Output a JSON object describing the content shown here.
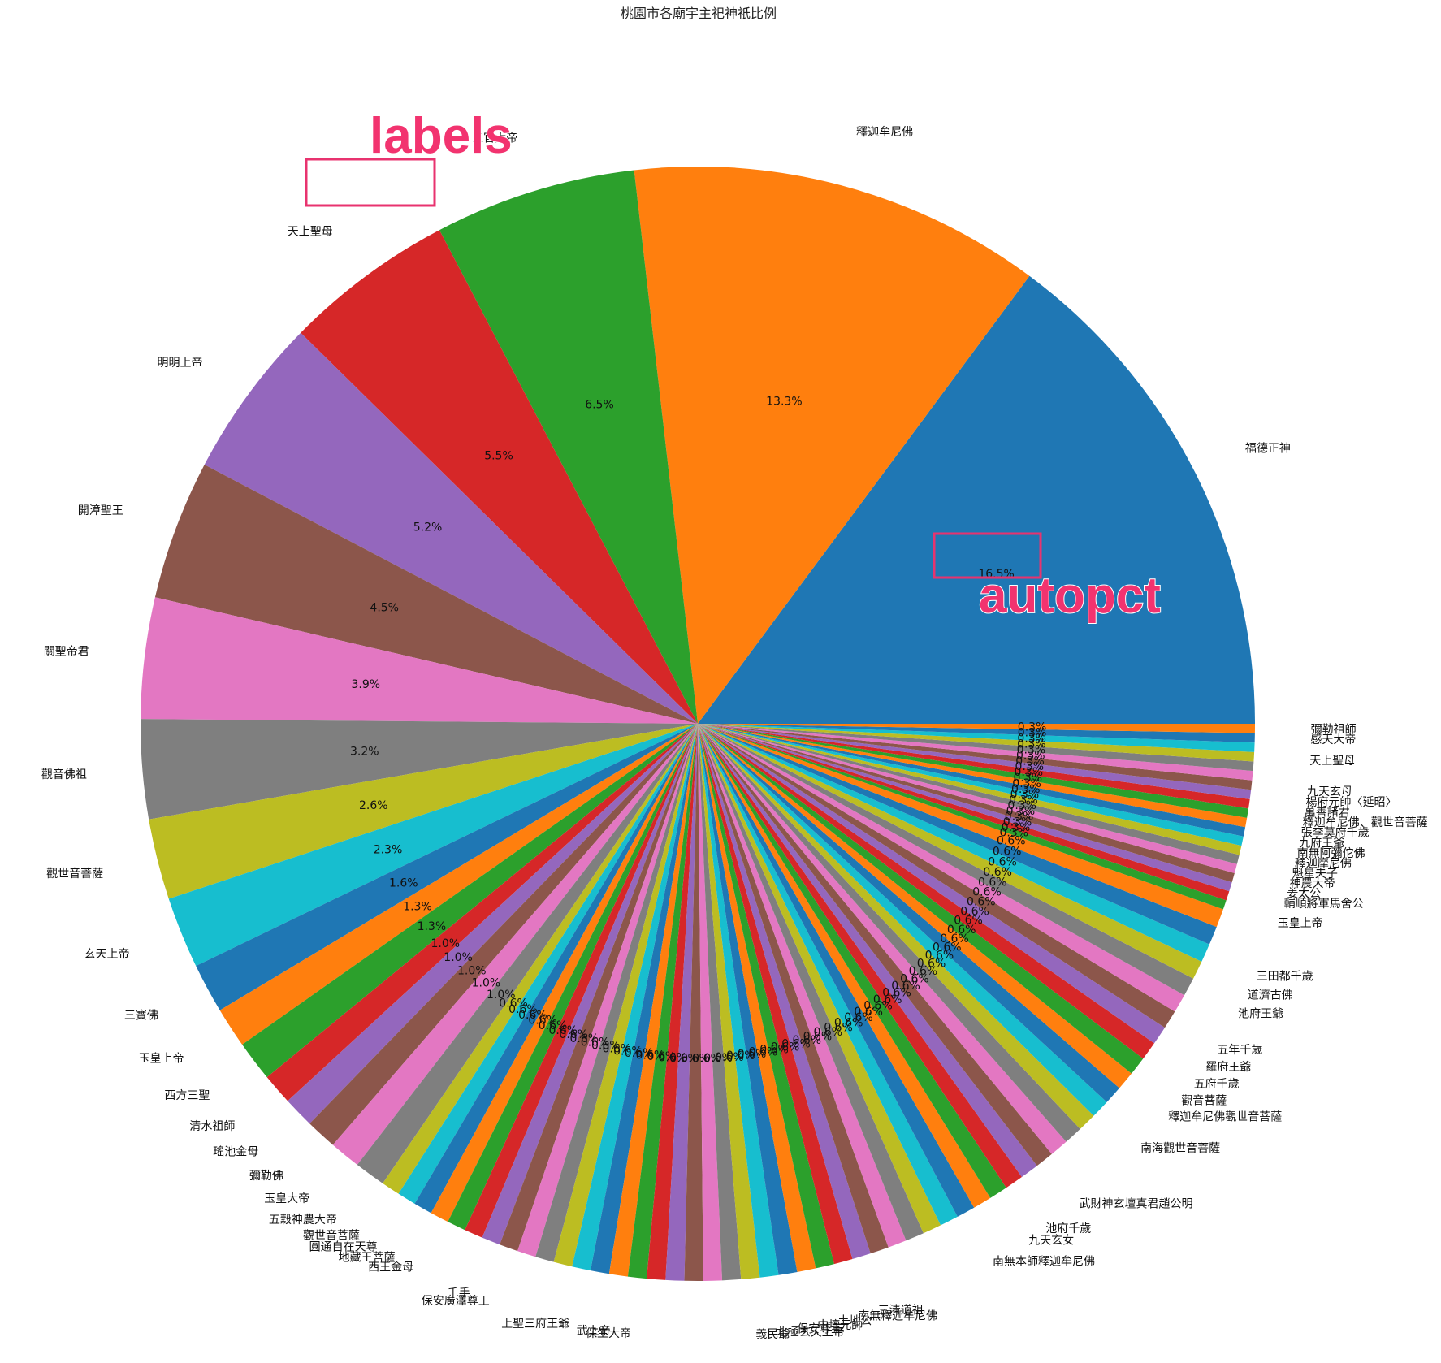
{
  "chart_data": {
    "type": "pie",
    "title": "桃園市各廟宇主祀神祇比例",
    "colors": [
      "#1f77b4",
      "#ff7f0e",
      "#2ca02c",
      "#d62728",
      "#9467bd",
      "#8c564b",
      "#e377c2",
      "#7f7f7f",
      "#bcbd22",
      "#17becf"
    ],
    "slices": [
      {
        "label": "福德正神",
        "value": 16.5,
        "pct": "16.5%"
      },
      {
        "label": "釋迦牟尼佛",
        "value": 13.3,
        "pct": "13.3%"
      },
      {
        "label": "三官大帝",
        "value": 6.5,
        "pct": "6.5%"
      },
      {
        "label": "天上聖母",
        "value": 5.5,
        "pct": "5.5%"
      },
      {
        "label": "明明上帝",
        "value": 5.2,
        "pct": "5.2%"
      },
      {
        "label": "開漳聖王",
        "value": 4.5,
        "pct": "4.5%"
      },
      {
        "label": "關聖帝君",
        "value": 3.9,
        "pct": "3.9%"
      },
      {
        "label": "觀音佛祖",
        "value": 3.2,
        "pct": "3.2%"
      },
      {
        "label": "觀世音菩薩",
        "value": 2.6,
        "pct": "2.6%"
      },
      {
        "label": "玄天上帝",
        "value": 2.3,
        "pct": "2.3%"
      },
      {
        "label": "三寶佛",
        "value": 1.6,
        "pct": "1.6%"
      },
      {
        "label": "玉皇上帝",
        "value": 1.3,
        "pct": "1.3%"
      },
      {
        "label": "西方三聖",
        "value": 1.3,
        "pct": "1.3%"
      },
      {
        "label": "清水祖師",
        "value": 1.0,
        "pct": "1.0%"
      },
      {
        "label": "瑤池金母",
        "value": 1.0,
        "pct": "1.0%"
      },
      {
        "label": "彌勒佛",
        "value": 1.0,
        "pct": "1.0%"
      },
      {
        "label": "玉皇大帝",
        "value": 1.0,
        "pct": "1.0%"
      },
      {
        "label": "五穀神農大帝",
        "value": 1.0,
        "pct": "1.0%"
      },
      {
        "label": "觀世音菩薩",
        "value": 0.6,
        "pct": "0.6%"
      },
      {
        "label": "圓通自在天尊",
        "value": 0.6,
        "pct": "0.6%"
      },
      {
        "label": "地藏王菩薩",
        "value": 0.6,
        "pct": "0.6%"
      },
      {
        "label": "西王金母",
        "value": 0.6,
        "pct": "0.6%"
      },
      {
        "label": "",
        "value": 0.6,
        "pct": "0.6%"
      },
      {
        "label": "",
        "value": 0.6,
        "pct": "0.6%"
      },
      {
        "label": "千手",
        "value": 0.6,
        "pct": "0.6%"
      },
      {
        "label": "保安廣澤尊王",
        "value": 0.6,
        "pct": "0.6%"
      },
      {
        "label": "",
        "value": 0.6,
        "pct": "0.6%"
      },
      {
        "label": "",
        "value": 0.6,
        "pct": "0.6%"
      },
      {
        "label": "",
        "value": 0.6,
        "pct": "0.6%"
      },
      {
        "label": "上聖三府王爺",
        "value": 0.6,
        "pct": "0.6%"
      },
      {
        "label": "",
        "value": 0.6,
        "pct": "0.6%"
      },
      {
        "label": "武上帝",
        "value": 0.6,
        "pct": "0.6%"
      },
      {
        "label": "保生大帝",
        "value": 0.6,
        "pct": "0.6%"
      },
      {
        "label": "",
        "value": 0.6,
        "pct": "0.6%"
      },
      {
        "label": "",
        "value": 0.6,
        "pct": "0.6%"
      },
      {
        "label": "",
        "value": 0.6,
        "pct": "0.6%"
      },
      {
        "label": "",
        "value": 0.6,
        "pct": "0.6%"
      },
      {
        "label": "",
        "value": 0.6,
        "pct": "0.6%"
      },
      {
        "label": "義民爺",
        "value": 0.6,
        "pct": "0.6%"
      },
      {
        "label": "北極玄天上帝",
        "value": 0.6,
        "pct": "0.6%"
      },
      {
        "label": "保安尊王",
        "value": 0.6,
        "pct": "0.6%"
      },
      {
        "label": "中壇元帥",
        "value": 0.6,
        "pct": "0.6%"
      },
      {
        "label": "土地公",
        "value": 0.6,
        "pct": "0.6%"
      },
      {
        "label": "南無釋迦牟尼佛",
        "value": 0.6,
        "pct": "0.6%"
      },
      {
        "label": "三清道祖",
        "value": 0.6,
        "pct": "0.6%"
      },
      {
        "label": "",
        "value": 0.6,
        "pct": "0.6%"
      },
      {
        "label": "",
        "value": 0.6,
        "pct": "0.6%"
      },
      {
        "label": "",
        "value": 0.6,
        "pct": "0.6%"
      },
      {
        "label": "",
        "value": 0.6,
        "pct": "0.6%"
      },
      {
        "label": "",
        "value": 0.6,
        "pct": "0.6%"
      },
      {
        "label": "南無本師釋迦牟尼佛",
        "value": 0.6,
        "pct": "0.6%"
      },
      {
        "label": "",
        "value": 0.6,
        "pct": "0.6%"
      },
      {
        "label": "九天玄女",
        "value": 0.6,
        "pct": "0.6%"
      },
      {
        "label": "池府千歲",
        "value": 0.6,
        "pct": "0.6%"
      },
      {
        "label": "",
        "value": 0.6,
        "pct": "0.6%"
      },
      {
        "label": "武財神玄壇真君趙公明",
        "value": 0.6,
        "pct": "0.6%"
      },
      {
        "label": "",
        "value": 0.6,
        "pct": "0.6%"
      },
      {
        "label": "",
        "value": 0.6,
        "pct": "0.6%"
      },
      {
        "label": "",
        "value": 0.6,
        "pct": "0.6%"
      },
      {
        "label": "南海觀世音菩薩",
        "value": 0.6,
        "pct": "0.6%"
      },
      {
        "label": "",
        "value": 0.6,
        "pct": "0.6%"
      },
      {
        "label": "釋迦牟尼佛觀世音菩薩",
        "value": 0.6,
        "pct": "0.6%"
      },
      {
        "label": "觀音菩薩",
        "value": 0.6,
        "pct": "0.6%"
      },
      {
        "label": "五府千歲",
        "value": 0.6,
        "pct": "0.6%"
      },
      {
        "label": "羅府王爺",
        "value": 0.6,
        "pct": "0.6%"
      },
      {
        "label": "五年千歲",
        "value": 0.6,
        "pct": "0.6%"
      },
      {
        "label": "",
        "value": 0.6,
        "pct": "0.6%"
      },
      {
        "label": "池府王爺",
        "value": 0.6,
        "pct": "0.6%"
      },
      {
        "label": "道濟古佛",
        "value": 0.6,
        "pct": "0.6%"
      },
      {
        "label": "三田都千歲",
        "value": 0.6,
        "pct": "0.6%"
      },
      {
        "label": "",
        "value": 0.6,
        "pct": "0.6%"
      },
      {
        "label": "",
        "value": 0.6,
        "pct": "0.6%"
      },
      {
        "label": "玉皇上帝",
        "value": 0.3,
        "pct": "0.3%"
      },
      {
        "label": "",
        "value": 0.3,
        "pct": "0.3%"
      },
      {
        "label": "輔順將軍馬舍公",
        "value": 0.3,
        "pct": "0.3%"
      },
      {
        "label": "姜太公",
        "value": 0.3,
        "pct": "0.3%"
      },
      {
        "label": "神農大帝",
        "value": 0.3,
        "pct": "0.3%"
      },
      {
        "label": "魁星夫子",
        "value": 0.3,
        "pct": "0.3%"
      },
      {
        "label": "釋迦摩尼佛",
        "value": 0.3,
        "pct": "0.3%"
      },
      {
        "label": "南無阿彌佗佛",
        "value": 0.3,
        "pct": "0.3%"
      },
      {
        "label": "九府王爺",
        "value": 0.3,
        "pct": "0.3%"
      },
      {
        "label": "張李莫府千歲",
        "value": 0.3,
        "pct": "0.3%"
      },
      {
        "label": "釋迦牟尼佛、觀世音菩薩",
        "value": 0.3,
        "pct": "0.3%"
      },
      {
        "label": "萬善諸君",
        "value": 0.3,
        "pct": "0.3%"
      },
      {
        "label": "楊府元帥〈延昭〉",
        "value": 0.3,
        "pct": "0.3%"
      },
      {
        "label": "九天玄母",
        "value": 0.3,
        "pct": "0.3%"
      },
      {
        "label": "",
        "value": 0.3,
        "pct": "0.3%"
      },
      {
        "label": "",
        "value": 0.3,
        "pct": "0.3%"
      },
      {
        "label": "天上聖母",
        "value": 0.3,
        "pct": "0.3%"
      },
      {
        "label": "",
        "value": 0.3,
        "pct": "0.3%"
      },
      {
        "label": "感天大帝",
        "value": 0.3,
        "pct": "0.3%"
      },
      {
        "label": "彌勒祖師",
        "value": 0.3,
        "pct": "0.3%"
      }
    ]
  },
  "annotations": {
    "labels_note": "labels",
    "autopct_note": "autopct"
  }
}
